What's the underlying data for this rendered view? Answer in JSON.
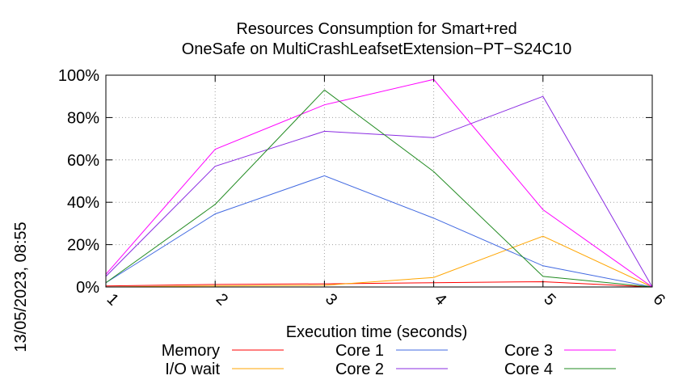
{
  "chart_data": {
    "type": "line",
    "title": "Resources Consumption for Smart+red",
    "subtitle": "OneSafe on MultiCrashLeafsetExtension−PT−S24C10",
    "xlabel": "Execution time (seconds)",
    "ylabel": "",
    "side_label": "13/05/2023, 08:55",
    "x": [
      1,
      2,
      3,
      4,
      5,
      6
    ],
    "x_tick_labels": [
      "1",
      "2",
      "3",
      "4",
      "5",
      "6"
    ],
    "xlim": [
      1,
      6
    ],
    "ylim": [
      0,
      100
    ],
    "y_ticks": [
      0,
      20,
      40,
      60,
      80,
      100
    ],
    "y_tick_labels": [
      "0%",
      "20%",
      "40%",
      "60%",
      "80%",
      "100%"
    ],
    "grid": true,
    "legend_position": "bottom",
    "series": [
      {
        "name": "Memory",
        "color": "#ff0000",
        "values": [
          0.5,
          1.2,
          1.5,
          2.0,
          2.5,
          0
        ]
      },
      {
        "name": "I/O wait",
        "color": "#ffa500",
        "values": [
          0,
          0.5,
          0.8,
          4.5,
          24,
          0
        ]
      },
      {
        "name": "Core 1",
        "color": "#4169e1",
        "values": [
          2,
          34.5,
          52.5,
          32.5,
          10,
          0
        ]
      },
      {
        "name": "Core 2",
        "color": "#8a2be2",
        "values": [
          5,
          57,
          73.5,
          70.5,
          90,
          0
        ]
      },
      {
        "name": "Core 3",
        "color": "#ff00ff",
        "values": [
          6,
          65,
          86,
          98,
          36.5,
          0
        ]
      },
      {
        "name": "Core 4",
        "color": "#228b22",
        "values": [
          2,
          39,
          93,
          54.5,
          5,
          0
        ]
      }
    ]
  }
}
